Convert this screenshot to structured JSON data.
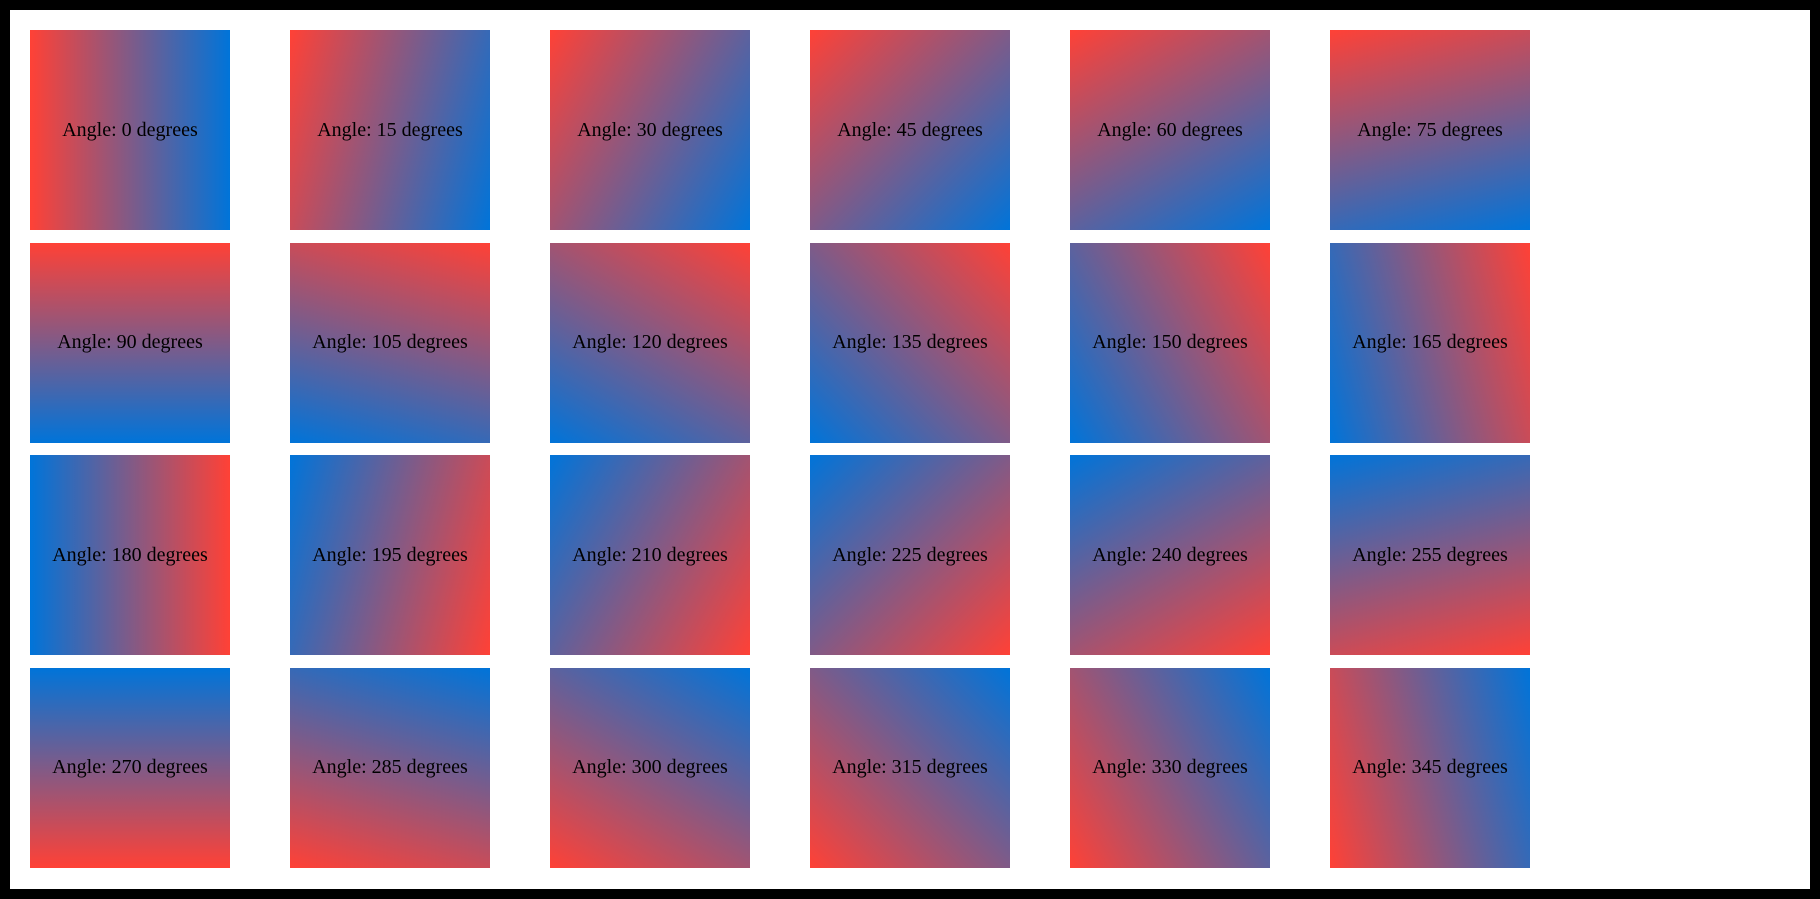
{
  "page": {
    "background_color": "#ffffff",
    "frame_color": "#000000",
    "label_color": "#000000"
  },
  "gradient": {
    "start_color": "#ff4136",
    "end_color": "#0074d9"
  },
  "tiles": [
    {
      "angle": 0,
      "label": "Angle: 0 degrees"
    },
    {
      "angle": 15,
      "label": "Angle: 15 degrees"
    },
    {
      "angle": 30,
      "label": "Angle: 30 degrees"
    },
    {
      "angle": 45,
      "label": "Angle: 45 degrees"
    },
    {
      "angle": 60,
      "label": "Angle: 60 degrees"
    },
    {
      "angle": 75,
      "label": "Angle: 75 degrees"
    },
    {
      "angle": 90,
      "label": "Angle: 90 degrees"
    },
    {
      "angle": 105,
      "label": "Angle: 105 degrees"
    },
    {
      "angle": 120,
      "label": "Angle: 120 degrees"
    },
    {
      "angle": 135,
      "label": "Angle: 135 degrees"
    },
    {
      "angle": 150,
      "label": "Angle: 150 degrees"
    },
    {
      "angle": 165,
      "label": "Angle: 165 degrees"
    },
    {
      "angle": 180,
      "label": "Angle: 180 degrees"
    },
    {
      "angle": 195,
      "label": "Angle: 195 degrees"
    },
    {
      "angle": 210,
      "label": "Angle: 210 degrees"
    },
    {
      "angle": 225,
      "label": "Angle: 225 degrees"
    },
    {
      "angle": 240,
      "label": "Angle: 240 degrees"
    },
    {
      "angle": 255,
      "label": "Angle: 255 degrees"
    },
    {
      "angle": 270,
      "label": "Angle: 270 degrees"
    },
    {
      "angle": 285,
      "label": "Angle: 285 degrees"
    },
    {
      "angle": 300,
      "label": "Angle: 300 degrees"
    },
    {
      "angle": 315,
      "label": "Angle: 315 degrees"
    },
    {
      "angle": 330,
      "label": "Angle: 330 degrees"
    },
    {
      "angle": 345,
      "label": "Angle: 345 degrees"
    }
  ]
}
